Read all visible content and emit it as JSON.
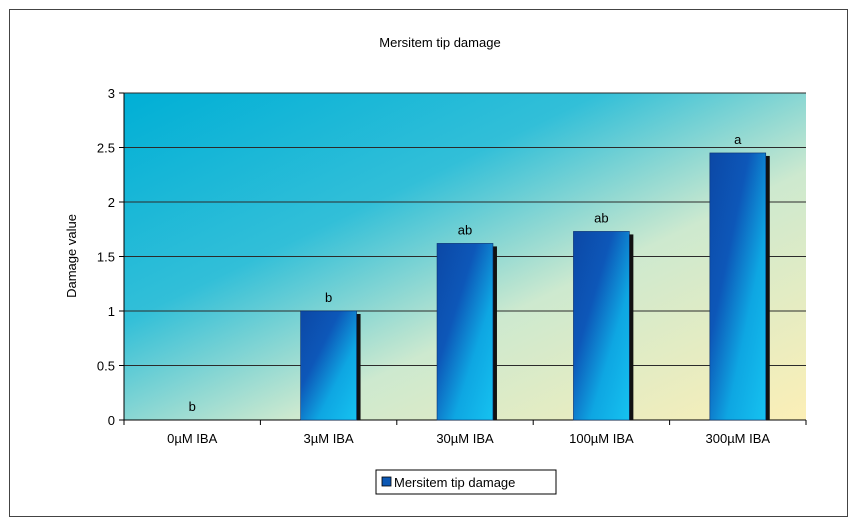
{
  "chart_data": {
    "type": "bar",
    "title": "Mersitem tip damage",
    "xlabel": "",
    "ylabel": "Damage value",
    "categories": [
      "0µM IBA",
      "3µM IBA",
      "30µM IBA",
      "100µM IBA",
      "300µM IBA"
    ],
    "series": [
      {
        "name": "Mersitem tip damage",
        "values": [
          0,
          1.0,
          1.62,
          1.73,
          2.45
        ],
        "color": "#1a7fd0"
      }
    ],
    "data_labels": [
      "b",
      "b",
      "ab",
      "ab",
      "a"
    ],
    "ylim": [
      0,
      3
    ],
    "yticks": [
      "0",
      "0.5",
      "1",
      "1.5",
      "2",
      "2.5",
      "3"
    ],
    "grid": true,
    "legend_position": "bottom",
    "colors": {
      "plot_bg_start": "#00b4d8",
      "plot_bg_end": "#fbefb4",
      "bar_light": "#0fb6ea",
      "bar_dark": "#0b3a8c",
      "frame_border": "#444444"
    }
  }
}
